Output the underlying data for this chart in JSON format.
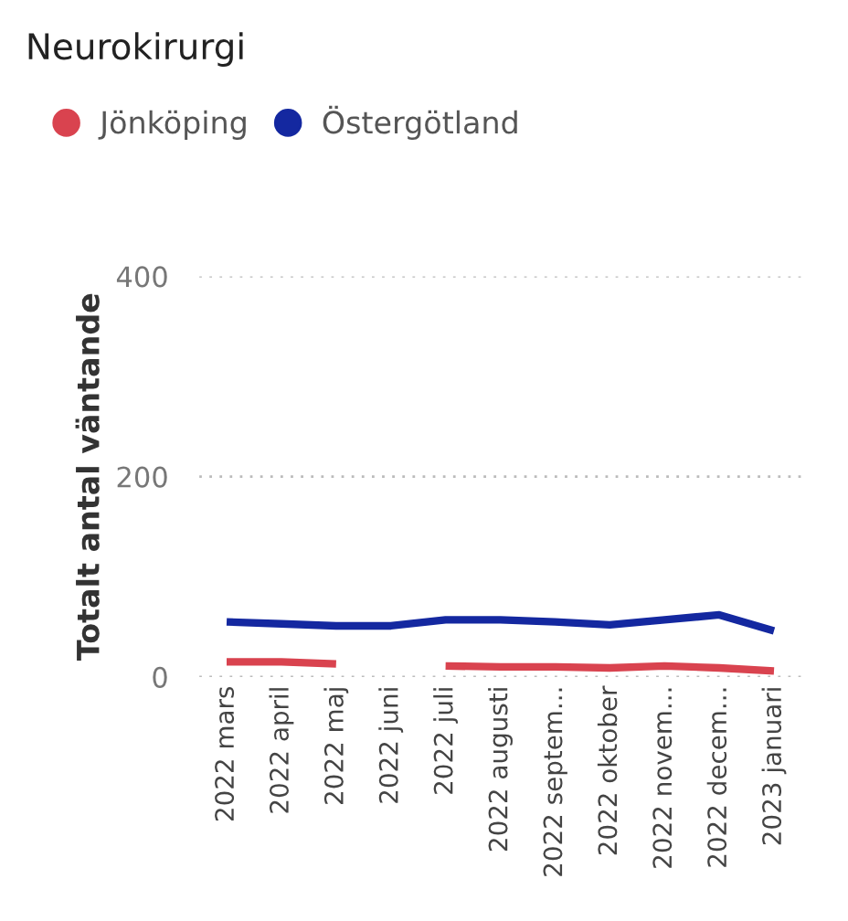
{
  "chart_data": {
    "type": "line",
    "title": "Neurokirurgi",
    "ylabel": "Totalt antal väntande",
    "categories": [
      "2022 mars",
      "2022 april",
      "2022 maj",
      "2022 juni",
      "2022 juli",
      "2022 augusti",
      "2022 septem...",
      "2022 oktober",
      "2022 novem...",
      "2022 decem...",
      "2023 januari"
    ],
    "series": [
      {
        "name": "Jönköping",
        "color": "#d9434f",
        "values": [
          15,
          15,
          13,
          null,
          11,
          10,
          10,
          9,
          11,
          9,
          6
        ]
      },
      {
        "name": "Östergötland",
        "color": "#1428a0",
        "values": [
          55,
          53,
          51,
          51,
          57,
          57,
          55,
          52,
          57,
          62,
          46
        ]
      }
    ],
    "ylim": [
      0,
      400
    ],
    "yticks": [
      0,
      200,
      400
    ],
    "grid": "y",
    "legend": "top left",
    "line_style": "solid",
    "marker": "none"
  }
}
